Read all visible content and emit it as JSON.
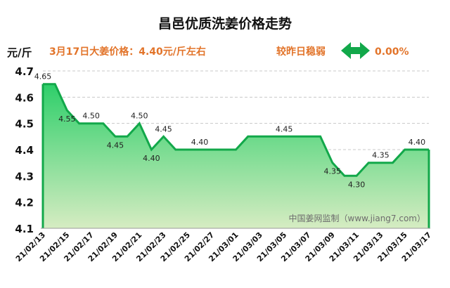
{
  "header": {
    "title": "昌邑优质洗姜价格走势",
    "unit": "元/斤",
    "price_note": "3月17日大姜价格：4.40元/斤左右",
    "compare_label": "较昨日稳弱",
    "change_pct": "0.00%",
    "arrow_icon": "left-right-arrow-icon",
    "arrow_color": "#12a84a"
  },
  "watermark": "中国姜网监制（www.jiang7.com）",
  "chart_data": {
    "type": "area",
    "title": "昌邑优质洗姜价格走势",
    "ylabel": "元/斤",
    "ylim": [
      4.1,
      4.7
    ],
    "yticks": [
      "4.1",
      "4.2",
      "4.3",
      "4.4",
      "4.5",
      "4.6",
      "4.7"
    ],
    "grid": true,
    "x": [
      "21/02/13",
      "21/02/14",
      "21/02/15",
      "21/02/16",
      "21/02/17",
      "21/02/18",
      "21/02/19",
      "21/02/20",
      "21/02/21",
      "21/02/22",
      "21/02/23",
      "21/02/24",
      "21/02/25",
      "21/02/26",
      "21/02/27",
      "21/02/28",
      "21/03/01",
      "21/03/02",
      "21/03/03",
      "21/03/04",
      "21/03/05",
      "21/03/06",
      "21/03/07",
      "21/03/08",
      "21/03/09",
      "21/03/10",
      "21/03/11",
      "21/03/12",
      "21/03/13",
      "21/03/14",
      "21/03/15",
      "21/03/16",
      "21/03/17"
    ],
    "xticks": [
      "21/02/13",
      "21/02/15",
      "21/02/17",
      "21/02/19",
      "21/02/21",
      "21/02/23",
      "21/02/25",
      "21/02/27",
      "21/03/01",
      "21/03/03",
      "21/03/05",
      "21/03/07",
      "21/03/09",
      "21/03/11",
      "21/03/13",
      "21/03/15",
      "21/03/17"
    ],
    "values": [
      4.65,
      4.65,
      4.55,
      4.5,
      4.5,
      4.5,
      4.45,
      4.45,
      4.5,
      4.4,
      4.45,
      4.4,
      4.4,
      4.4,
      4.4,
      4.4,
      4.4,
      4.45,
      4.45,
      4.45,
      4.45,
      4.45,
      4.45,
      4.45,
      4.35,
      4.3,
      4.3,
      4.35,
      4.35,
      4.35,
      4.4,
      4.4,
      4.4
    ],
    "annotations": [
      {
        "index": 0,
        "text": "4.65",
        "pos": "above"
      },
      {
        "index": 2,
        "text": "4.55",
        "pos": "below"
      },
      {
        "index": 4,
        "text": "4.50",
        "pos": "above"
      },
      {
        "index": 6,
        "text": "4.45",
        "pos": "below"
      },
      {
        "index": 8,
        "text": "4.50",
        "pos": "above"
      },
      {
        "index": 9,
        "text": "4.40",
        "pos": "below"
      },
      {
        "index": 10,
        "text": "4.45",
        "pos": "above"
      },
      {
        "index": 13,
        "text": "4.40",
        "pos": "above"
      },
      {
        "index": 20,
        "text": "4.45",
        "pos": "above"
      },
      {
        "index": 24,
        "text": "4.35",
        "pos": "below"
      },
      {
        "index": 26,
        "text": "4.30",
        "pos": "below"
      },
      {
        "index": 28,
        "text": "4.35",
        "pos": "above"
      },
      {
        "index": 31,
        "text": "4.40",
        "pos": "above"
      }
    ],
    "line_color": "#12a84a",
    "fill_top_color": "#2ecf6a",
    "fill_bottom_color": "#d6ecc2"
  }
}
